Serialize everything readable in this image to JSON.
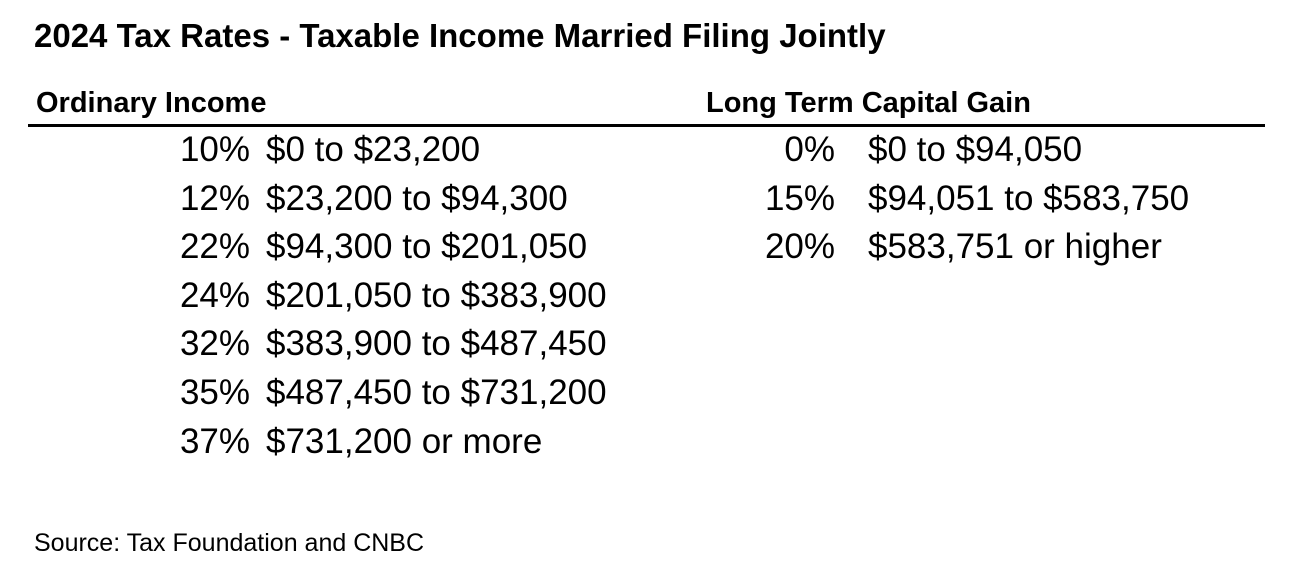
{
  "title": "2024 Tax Rates - Taxable Income Married Filing Jointly",
  "ordinary_income": {
    "heading": "Ordinary Income",
    "brackets": [
      {
        "rate": "10%",
        "range": "$0 to $23,200"
      },
      {
        "rate": "12%",
        "range": "$23,200 to $94,300"
      },
      {
        "rate": "22%",
        "range": "$94,300 to $201,050"
      },
      {
        "rate": "24%",
        "range": "$201,050 to $383,900"
      },
      {
        "rate": "32%",
        "range": "$383,900 to $487,450"
      },
      {
        "rate": "35%",
        "range": "$487,450 to $731,200"
      },
      {
        "rate": "37%",
        "range": "$731,200 or more"
      }
    ]
  },
  "long_term_capital_gain": {
    "heading": "Long Term Capital Gain",
    "brackets": [
      {
        "rate": "0%",
        "range": "$0 to $94,050"
      },
      {
        "rate": "15%",
        "range": "$94,051 to $583,750"
      },
      {
        "rate": "20%",
        "range": "$583,751 or higher"
      }
    ]
  },
  "source": "Source: Tax Foundation and CNBC"
}
